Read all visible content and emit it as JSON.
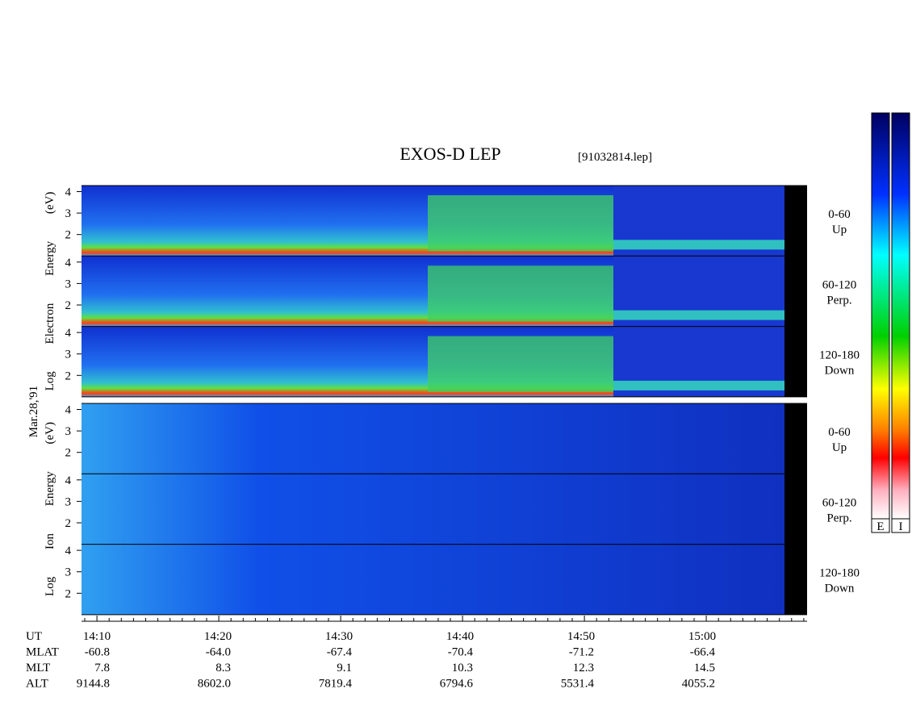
{
  "header": {
    "title": "EXOS-D LEP",
    "file": "[91032814.lep]"
  },
  "date": "Mar.28,'91",
  "groups": [
    {
      "label": "Log Electron Energy (eV)",
      "panels": [
        {
          "pitch": "0-60",
          "dir": "Up",
          "ticks": [
            4,
            3,
            2
          ]
        },
        {
          "pitch": "60-120",
          "dir": "Perp.",
          "ticks": [
            4,
            3,
            2
          ]
        },
        {
          "pitch": "120-180",
          "dir": "Down",
          "ticks": [
            4,
            3,
            2
          ]
        }
      ]
    },
    {
      "label": "Log Ion Energy (eV)",
      "panels": [
        {
          "pitch": "0-60",
          "dir": "Up",
          "ticks": [
            4,
            3,
            2
          ]
        },
        {
          "pitch": "60-120",
          "dir": "Perp.",
          "ticks": [
            4,
            3,
            2
          ]
        },
        {
          "pitch": "120-180",
          "dir": "Down",
          "ticks": [
            4,
            3,
            2
          ]
        }
      ]
    }
  ],
  "colorbars": [
    "E",
    "I"
  ],
  "ephemeris": {
    "rows": [
      {
        "name": "UT",
        "values": [
          "14:10",
          "14:20",
          "14:30",
          "14:40",
          "14:50",
          "15:00"
        ]
      },
      {
        "name": "MLAT",
        "values": [
          "-60.8",
          "-64.0",
          "-67.4",
          "-70.4",
          "-71.2",
          "-66.4"
        ]
      },
      {
        "name": "MLT",
        "values": [
          "7.8",
          "8.3",
          "9.1",
          "10.3",
          "12.3",
          "14.5"
        ]
      },
      {
        "name": "ALT",
        "values": [
          "9144.8",
          "8602.0",
          "7819.4",
          "6794.6",
          "5531.4",
          "4055.2"
        ]
      }
    ]
  }
}
